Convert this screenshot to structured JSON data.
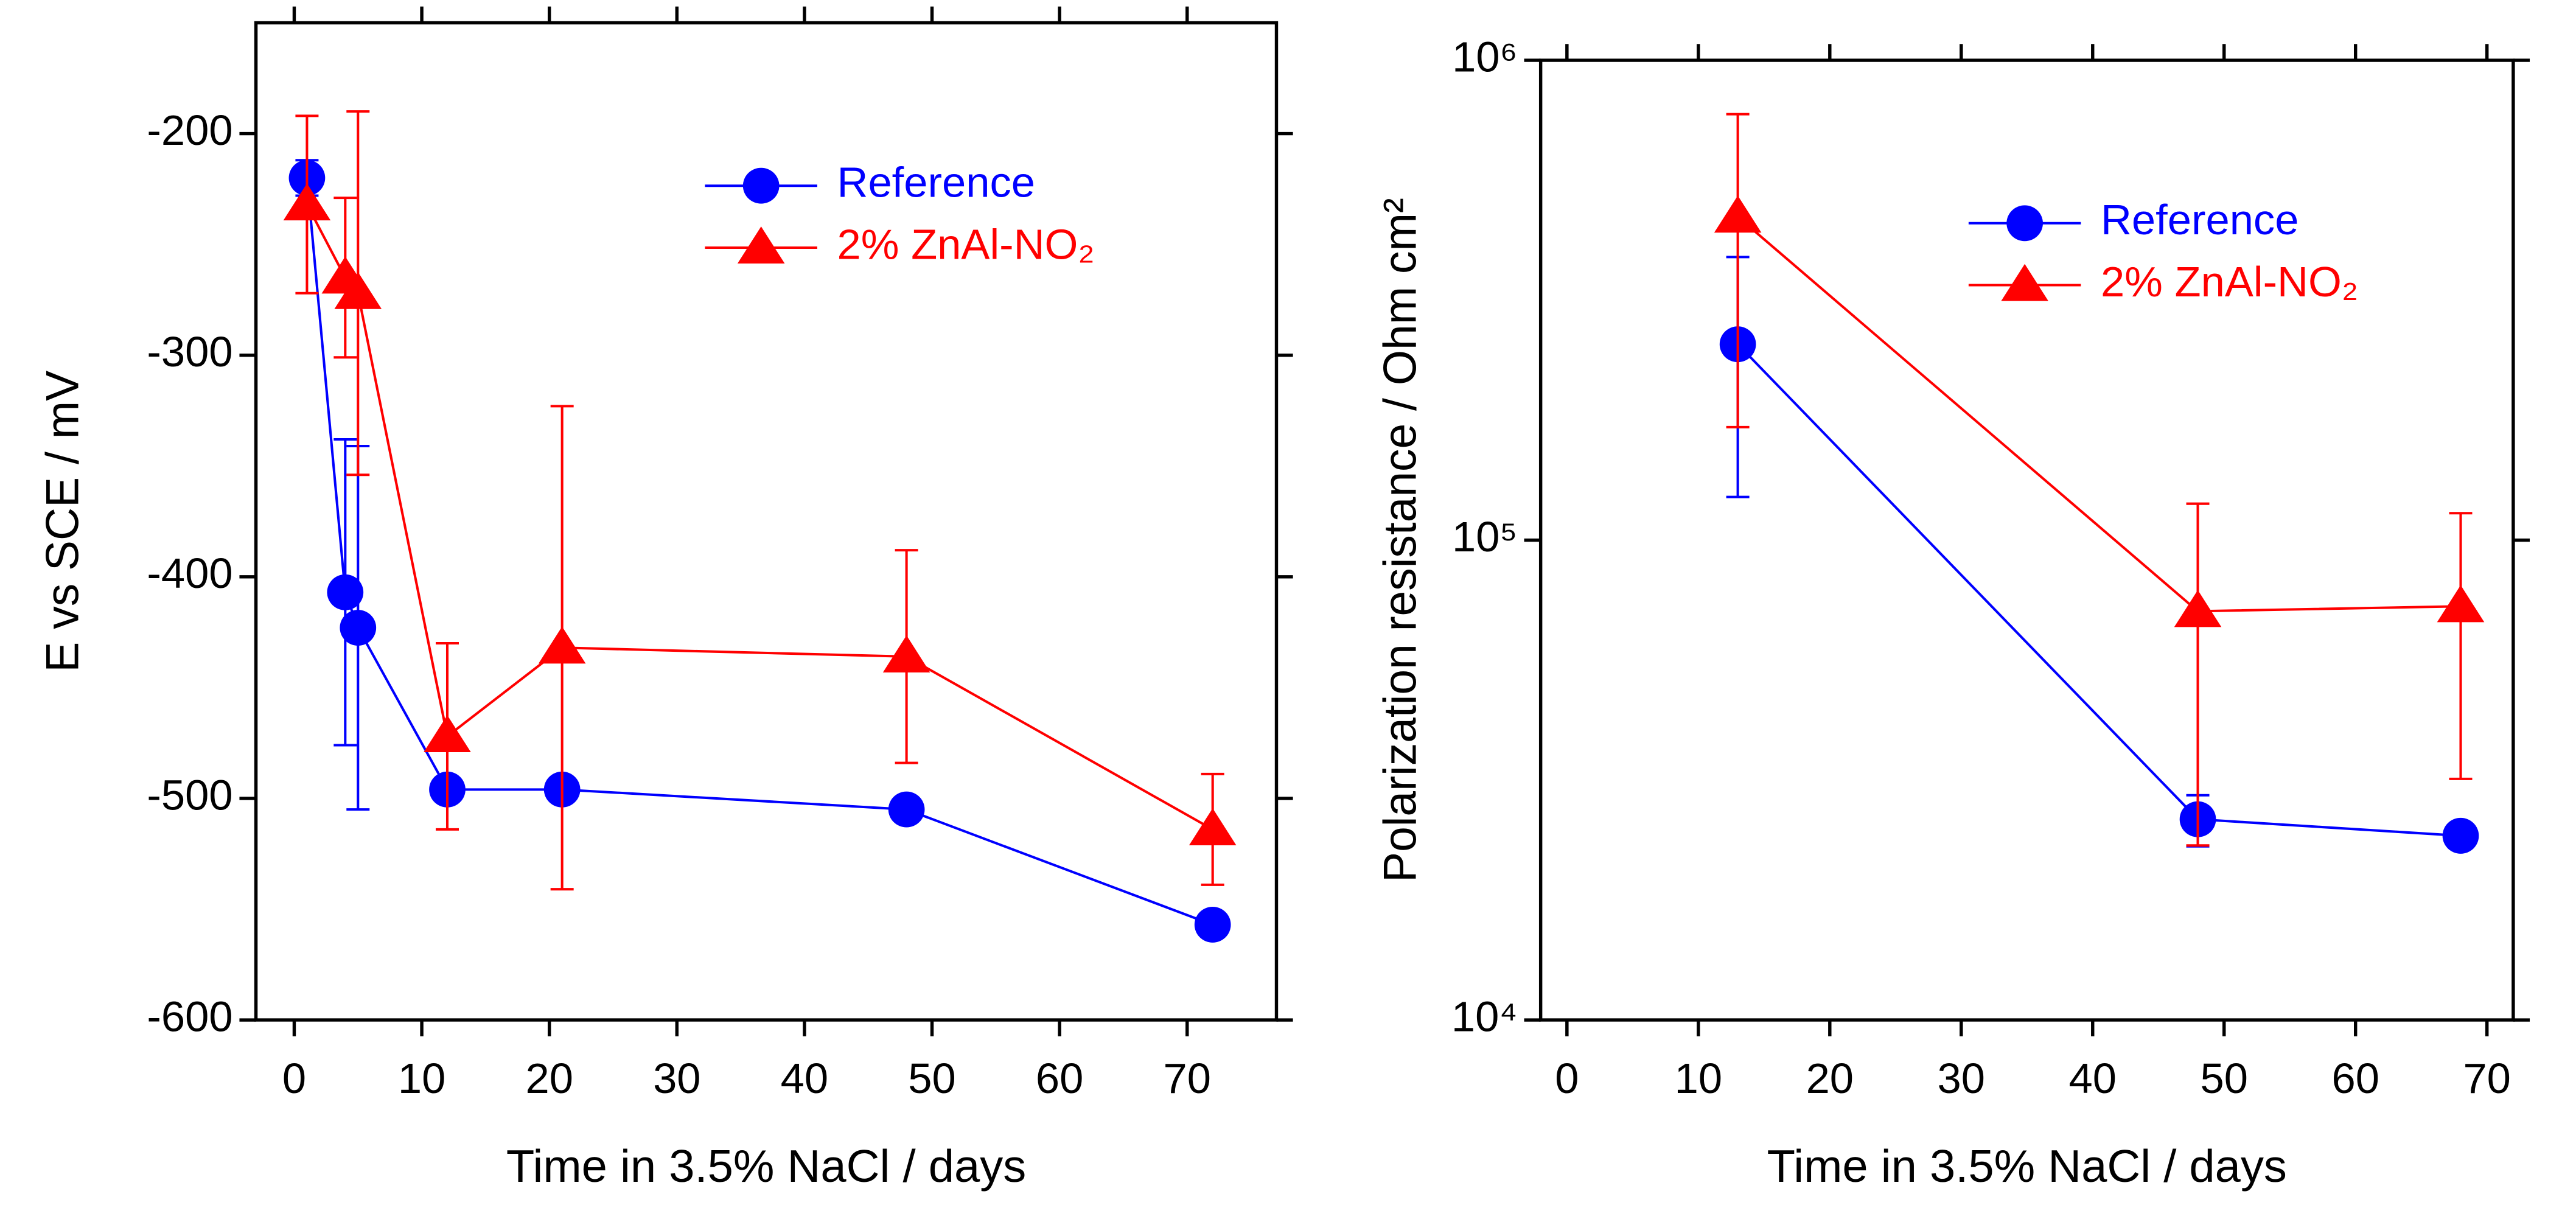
{
  "chart_data": [
    {
      "type": "line",
      "xlabel": "Time in 3.5% NaCl / days",
      "ylabel": "E vs SCE / mV",
      "xlim": [
        -3,
        77
      ],
      "xticks": [
        0,
        10,
        20,
        30,
        40,
        50,
        60,
        70
      ],
      "ylim": [
        -600,
        -150
      ],
      "yticks": [
        -600,
        -500,
        -400,
        -300,
        -200
      ],
      "legend": "upper right",
      "series": [
        {
          "name": "Reference",
          "color": "#0000ff",
          "marker": "circle",
          "x": [
            1,
            4,
            5,
            12,
            21,
            48,
            72
          ],
          "values": [
            -220,
            -407,
            -423,
            -496,
            -496,
            -505,
            -557
          ],
          "errors": [
            8,
            69,
            82,
            null,
            null,
            null,
            null
          ]
        },
        {
          "name": "2% ZnAl-NO₂",
          "color": "#ff0000",
          "marker": "triangle",
          "x": [
            1,
            4,
            5,
            12,
            21,
            48,
            72
          ],
          "values": [
            -232,
            -265,
            -272,
            -472,
            -432,
            -436,
            -514
          ],
          "errors": [
            40,
            36,
            82,
            42,
            109,
            48,
            25
          ]
        }
      ]
    },
    {
      "type": "line",
      "xlabel": "Time in 3.5% NaCl / days",
      "ylabel": "Polarization resistance / Ohm cm²",
      "xlim": [
        -2,
        72
      ],
      "xticks": [
        0,
        10,
        20,
        30,
        40,
        50,
        60,
        70
      ],
      "ylim": [
        10000,
        1000000
      ],
      "log_y": true,
      "yticks": [
        {
          "value": 10000,
          "label": "10⁴"
        },
        {
          "value": 100000,
          "label": "10⁵"
        },
        {
          "value": 1000000,
          "label": "10⁶"
        }
      ],
      "legend": "upper right",
      "series": [
        {
          "name": "Reference",
          "color": "#0000ff",
          "marker": "circle",
          "x": [
            13,
            48,
            68
          ],
          "values": [
            256000,
            26200,
            24200
          ],
          "errors": [
            133000,
            3200,
            null
          ]
        },
        {
          "name": "2% ZnAl-NO₂",
          "color": "#ff0000",
          "marker": "triangle",
          "x": [
            13,
            48,
            68
          ],
          "values": [
            472000,
            71100,
            72800
          ],
          "errors": [
            300000,
            48000,
            41000
          ]
        }
      ]
    }
  ]
}
